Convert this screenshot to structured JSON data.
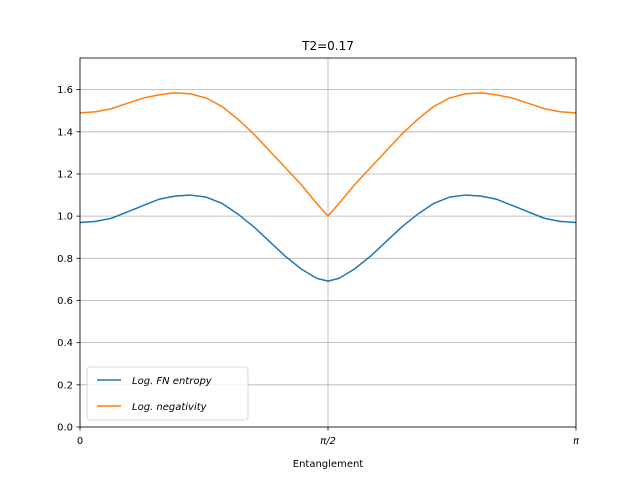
{
  "chart_data": {
    "type": "line",
    "title": "T2=0.17",
    "xlabel": "Entanglement",
    "ylabel": "",
    "xlim": [
      0,
      3.14159
    ],
    "ylim": [
      0,
      1.75
    ],
    "x_ticks": [
      {
        "value": 0,
        "label": "0"
      },
      {
        "value": 1.5708,
        "label": "π/2"
      },
      {
        "value": 3.14159,
        "label": "π"
      }
    ],
    "y_ticks": [
      {
        "value": 0.0,
        "label": "0.0"
      },
      {
        "value": 0.2,
        "label": "0.2"
      },
      {
        "value": 0.4,
        "label": "0.4"
      },
      {
        "value": 0.6,
        "label": "0.6"
      },
      {
        "value": 0.8,
        "label": "0.8"
      },
      {
        "value": 1.0,
        "label": "1.0"
      },
      {
        "value": 1.2,
        "label": "1.2"
      },
      {
        "value": 1.4,
        "label": "1.4"
      },
      {
        "value": 1.6,
        "label": "1.6"
      }
    ],
    "grid": true,
    "legend_position": "lower-left",
    "series": [
      {
        "name": "Log. FN entropy",
        "color": "#1f77b4",
        "x": [
          0,
          0.1,
          0.2,
          0.3,
          0.4,
          0.5,
          0.6,
          0.7,
          0.8,
          0.9,
          1.0,
          1.1,
          1.2,
          1.3,
          1.4,
          1.5,
          1.5708,
          1.64,
          1.74,
          1.84,
          1.94,
          2.04,
          2.14,
          2.24,
          2.34,
          2.44,
          2.54,
          2.64,
          2.74,
          2.84,
          2.94,
          3.04,
          3.14159
        ],
        "y": [
          0.97,
          0.975,
          0.99,
          1.02,
          1.05,
          1.08,
          1.095,
          1.1,
          1.09,
          1.06,
          1.01,
          0.95,
          0.88,
          0.81,
          0.75,
          0.705,
          0.692,
          0.705,
          0.75,
          0.81,
          0.88,
          0.95,
          1.01,
          1.06,
          1.09,
          1.1,
          1.095,
          1.08,
          1.05,
          1.02,
          0.99,
          0.975,
          0.97
        ]
      },
      {
        "name": "Log. negativity",
        "color": "#ff7f0e",
        "x": [
          0,
          0.1,
          0.2,
          0.3,
          0.4,
          0.5,
          0.6,
          0.7,
          0.8,
          0.9,
          1.0,
          1.1,
          1.2,
          1.3,
          1.4,
          1.5,
          1.5708,
          1.64,
          1.74,
          1.84,
          1.94,
          2.04,
          2.14,
          2.24,
          2.34,
          2.44,
          2.54,
          2.64,
          2.74,
          2.84,
          2.94,
          3.04,
          3.14159
        ],
        "y": [
          1.49,
          1.495,
          1.51,
          1.535,
          1.56,
          1.575,
          1.585,
          1.58,
          1.56,
          1.52,
          1.46,
          1.39,
          1.31,
          1.23,
          1.15,
          1.06,
          1.0,
          1.06,
          1.15,
          1.23,
          1.31,
          1.39,
          1.46,
          1.52,
          1.56,
          1.58,
          1.585,
          1.575,
          1.56,
          1.535,
          1.51,
          1.495,
          1.49
        ]
      }
    ]
  }
}
